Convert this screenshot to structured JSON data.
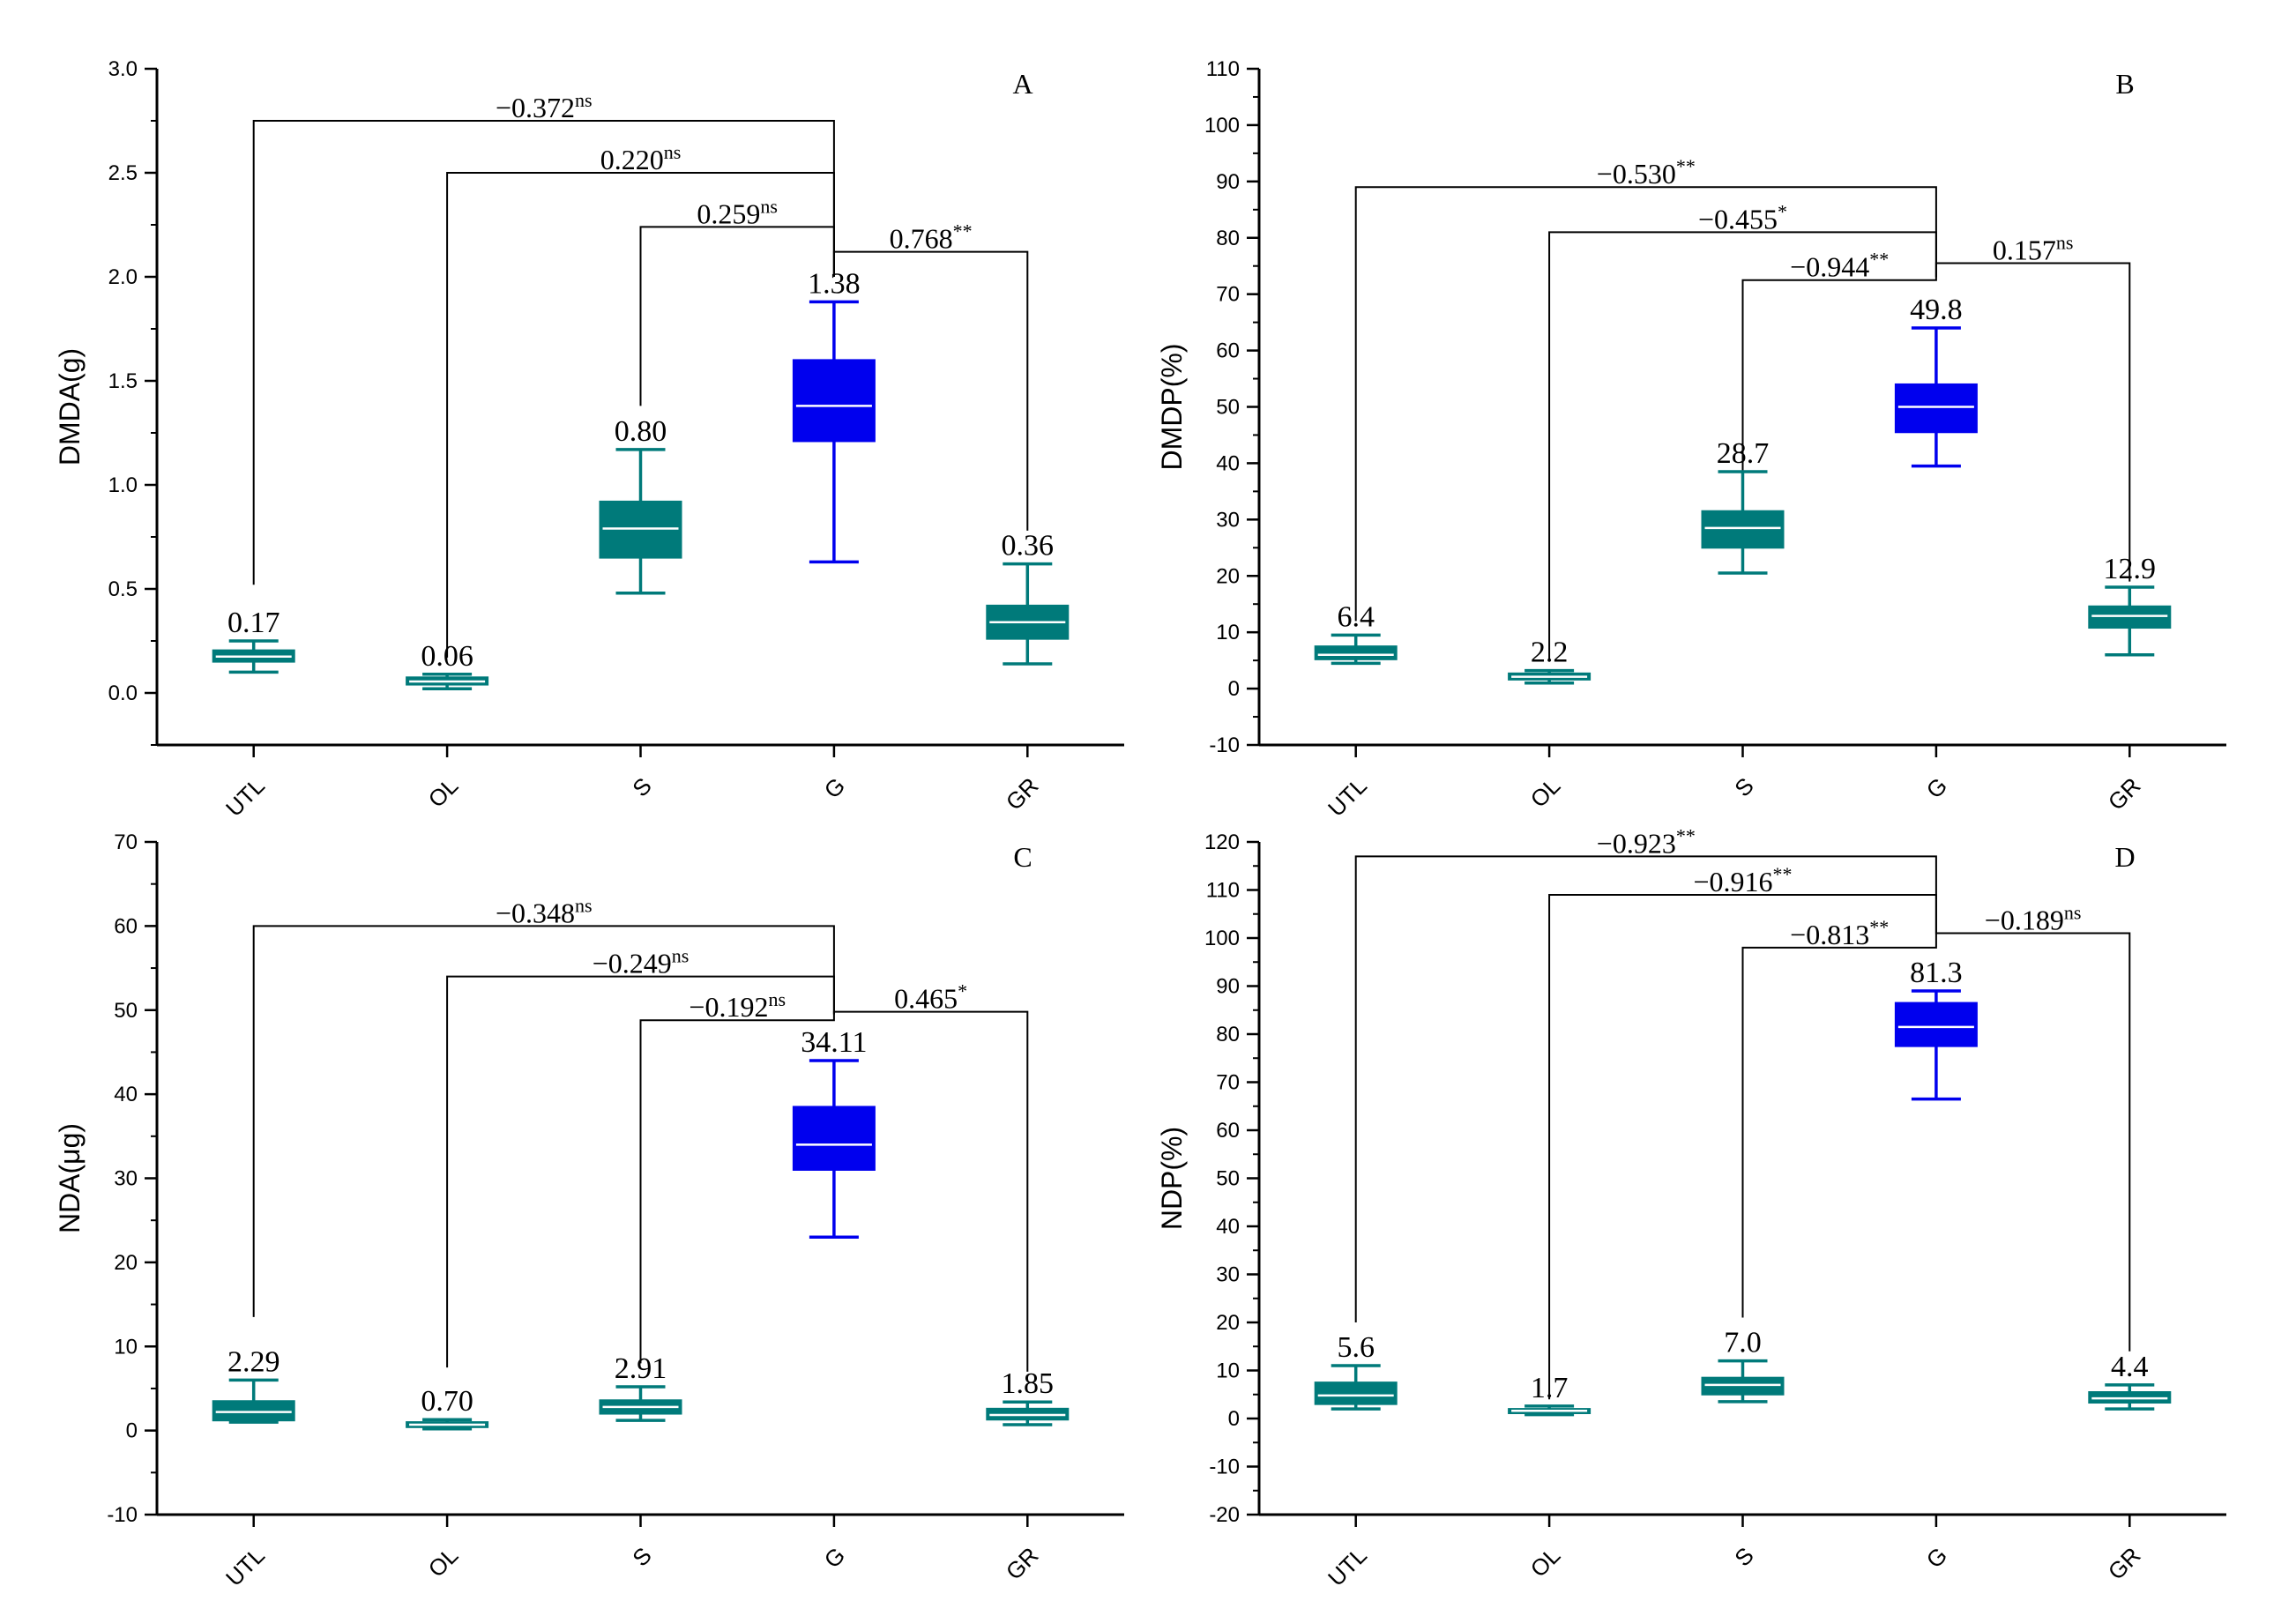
{
  "colors": {
    "teal": "#007a7a",
    "blue": "#0000ee",
    "axis": "#000000",
    "median": "#ffffff"
  },
  "chart_data": [
    {
      "type": "box",
      "panel": "A",
      "ylabel": "DMDA(g)",
      "ylim": [
        -0.25,
        3.0
      ],
      "yticks": [
        0.0,
        0.5,
        1.0,
        1.5,
        2.0,
        2.5,
        3.0
      ],
      "ytick_labels": [
        "0.0",
        "0.5",
        "1.0",
        "1.5",
        "2.0",
        "2.5",
        "3.0"
      ],
      "minor_step": 0.25,
      "categories": [
        "UTL",
        "OL",
        "S",
        "G",
        "GR"
      ],
      "boxes": [
        {
          "cat": "UTL",
          "whislo": 0.1,
          "q1": 0.15,
          "med": 0.175,
          "q3": 0.205,
          "whishi": 0.25,
          "label": "0.17",
          "color": "teal"
        },
        {
          "cat": "OL",
          "whislo": 0.02,
          "q1": 0.04,
          "med": 0.055,
          "q3": 0.075,
          "whishi": 0.09,
          "label": "0.06",
          "color": "teal"
        },
        {
          "cat": "S",
          "whislo": 0.48,
          "q1": 0.65,
          "med": 0.79,
          "q3": 0.92,
          "whishi": 1.17,
          "label": "0.80",
          "color": "teal"
        },
        {
          "cat": "G",
          "whislo": 0.63,
          "q1": 1.21,
          "med": 1.38,
          "q3": 1.6,
          "whishi": 1.88,
          "label": "1.38",
          "color": "blue"
        },
        {
          "cat": "GR",
          "whislo": 0.14,
          "q1": 0.26,
          "med": 0.34,
          "q3": 0.42,
          "whishi": 0.62,
          "label": "0.36",
          "color": "teal"
        }
      ],
      "brackets": [
        {
          "from": "UTL",
          "to": "G",
          "y": 2.75,
          "from_end": 0.52,
          "to_end": 2.0,
          "value": "−0.372",
          "sig": "ns"
        },
        {
          "from": "OL",
          "to": "G",
          "y": 2.5,
          "from_end": 0.17,
          "to_end": 2.0,
          "value": "0.220",
          "sig": "ns"
        },
        {
          "from": "S",
          "to": "G",
          "y": 2.24,
          "from_end": 1.38,
          "to_end": 2.0,
          "value": "0.259",
          "sig": "ns"
        },
        {
          "from": "G",
          "to": "GR",
          "y": 2.12,
          "from_end": 2.0,
          "to_end": 0.78,
          "value": "0.768",
          "sig": "**"
        }
      ]
    },
    {
      "type": "box",
      "panel": "B",
      "ylabel": "DMDP(%)",
      "ylim": [
        -10,
        110
      ],
      "yticks": [
        -10,
        0,
        10,
        20,
        30,
        40,
        50,
        60,
        70,
        80,
        90,
        100,
        110
      ],
      "ytick_labels": [
        "-10",
        "0",
        "10",
        "20",
        "30",
        "40",
        "50",
        "60",
        "70",
        "80",
        "90",
        "100",
        "110"
      ],
      "minor_step": 5,
      "categories": [
        "UTL",
        "OL",
        "S",
        "G",
        "GR"
      ],
      "boxes": [
        {
          "cat": "UTL",
          "whislo": 4.5,
          "q1": 5.2,
          "med": 6.0,
          "q3": 7.5,
          "whishi": 9.5,
          "label": "6.4",
          "color": "teal"
        },
        {
          "cat": "OL",
          "whislo": 1.0,
          "q1": 1.6,
          "med": 2.1,
          "q3": 2.7,
          "whishi": 3.2,
          "label": "2.2",
          "color": "teal"
        },
        {
          "cat": "S",
          "whislo": 20.5,
          "q1": 25.0,
          "med": 28.5,
          "q3": 31.5,
          "whishi": 38.5,
          "label": "28.7",
          "color": "teal"
        },
        {
          "cat": "G",
          "whislo": 39.5,
          "q1": 45.5,
          "med": 50.0,
          "q3": 54.0,
          "whishi": 64.0,
          "label": "49.8",
          "color": "blue"
        },
        {
          "cat": "GR",
          "whislo": 6.0,
          "q1": 10.8,
          "med": 12.9,
          "q3": 14.6,
          "whishi": 18.0,
          "label": "12.9",
          "color": "teal"
        }
      ],
      "brackets": [
        {
          "from": "UTL",
          "to": "G",
          "y": 89,
          "from_end": 12,
          "to_end": 73,
          "value": "−0.530",
          "sig": "**"
        },
        {
          "from": "OL",
          "to": "G",
          "y": 81,
          "from_end": 5,
          "to_end": 73,
          "value": "−0.455",
          "sig": "*"
        },
        {
          "from": "S",
          "to": "G",
          "y": 72.5,
          "from_end": 33,
          "to_end": 73,
          "value": "−0.944",
          "sig": "**"
        },
        {
          "from": "G",
          "to": "GR",
          "y": 75.5,
          "from_end": 73,
          "to_end": 19,
          "value": "0.157",
          "sig": "ns"
        }
      ]
    },
    {
      "type": "box",
      "panel": "C",
      "ylabel": "NDA(μg)",
      "ylim": [
        -10,
        70
      ],
      "yticks": [
        -10,
        0,
        10,
        20,
        30,
        40,
        50,
        60,
        70
      ],
      "ytick_labels": [
        "-10",
        "0",
        "10",
        "20",
        "30",
        "40",
        "50",
        "60",
        "70"
      ],
      "minor_step": 5,
      "categories": [
        "UTL",
        "OL",
        "S",
        "G",
        "GR"
      ],
      "boxes": [
        {
          "cat": "UTL",
          "whislo": 1.0,
          "q1": 1.2,
          "med": 2.2,
          "q3": 3.5,
          "whishi": 6.0,
          "label": "2.29",
          "color": "teal"
        },
        {
          "cat": "OL",
          "whislo": 0.2,
          "q1": 0.4,
          "med": 0.7,
          "q3": 1.0,
          "whishi": 1.3,
          "label": "0.70",
          "color": "teal"
        },
        {
          "cat": "S",
          "whislo": 1.2,
          "q1": 2.0,
          "med": 2.8,
          "q3": 3.6,
          "whishi": 5.2,
          "label": "2.91",
          "color": "teal"
        },
        {
          "cat": "G",
          "whislo": 23.0,
          "q1": 31.0,
          "med": 34.0,
          "q3": 38.5,
          "whishi": 44.0,
          "label": "34.11",
          "color": "blue"
        },
        {
          "cat": "GR",
          "whislo": 0.7,
          "q1": 1.3,
          "med": 1.85,
          "q3": 2.6,
          "whishi": 3.4,
          "label": "1.85",
          "color": "teal"
        }
      ],
      "brackets": [
        {
          "from": "UTL",
          "to": "G",
          "y": 60,
          "from_end": 13.5,
          "to_end": 49.5,
          "value": "−0.348",
          "sig": "ns"
        },
        {
          "from": "OL",
          "to": "G",
          "y": 54,
          "from_end": 7.5,
          "to_end": 49.5,
          "value": "−0.249",
          "sig": "ns"
        },
        {
          "from": "S",
          "to": "G",
          "y": 48.8,
          "from_end": 8.0,
          "to_end": 49.5,
          "value": "−0.192",
          "sig": "ns"
        },
        {
          "from": "G",
          "to": "GR",
          "y": 49.8,
          "from_end": 49.5,
          "to_end": 7.0,
          "value": "0.465",
          "sig": "*"
        }
      ]
    },
    {
      "type": "box",
      "panel": "D",
      "ylabel": "NDP(%)",
      "ylim": [
        -20,
        120
      ],
      "yticks": [
        -20,
        -10,
        0,
        10,
        20,
        30,
        40,
        50,
        60,
        70,
        80,
        90,
        100,
        110,
        120
      ],
      "ytick_labels": [
        "-20",
        "-10",
        "0",
        "10",
        "20",
        "30",
        "40",
        "50",
        "60",
        "70",
        "80",
        "90",
        "100",
        "110",
        "120"
      ],
      "minor_step": 5,
      "categories": [
        "UTL",
        "OL",
        "S",
        "G",
        "GR"
      ],
      "boxes": [
        {
          "cat": "UTL",
          "whislo": 2.0,
          "q1": 3.0,
          "med": 4.8,
          "q3": 7.5,
          "whishi": 11.0,
          "label": "5.6",
          "color": "teal"
        },
        {
          "cat": "OL",
          "whislo": 0.8,
          "q1": 1.1,
          "med": 1.6,
          "q3": 2.0,
          "whishi": 2.6,
          "label": "1.7",
          "color": "teal"
        },
        {
          "cat": "S",
          "whislo": 3.5,
          "q1": 5.0,
          "med": 7.0,
          "q3": 8.5,
          "whishi": 12.0,
          "label": "7.0",
          "color": "teal"
        },
        {
          "cat": "G",
          "whislo": 66.5,
          "q1": 77.5,
          "med": 81.5,
          "q3": 86.5,
          "whishi": 89.0,
          "label": "81.3",
          "color": "blue"
        },
        {
          "cat": "GR",
          "whislo": 2.0,
          "q1": 3.3,
          "med": 4.2,
          "q3": 5.5,
          "whishi": 7.0,
          "label": "4.4",
          "color": "teal"
        }
      ],
      "brackets": [
        {
          "from": "UTL",
          "to": "G",
          "y": 117,
          "from_end": 20,
          "to_end": 108,
          "value": "−0.923",
          "sig": "**"
        },
        {
          "from": "OL",
          "to": "G",
          "y": 109,
          "from_end": 4,
          "to_end": 108,
          "value": "−0.916",
          "sig": "**"
        },
        {
          "from": "S",
          "to": "G",
          "y": 98,
          "from_end": 21,
          "to_end": 108,
          "value": "−0.813",
          "sig": "**"
        },
        {
          "from": "G",
          "to": "GR",
          "y": 101,
          "from_end": 108,
          "to_end": 14,
          "value": "−0.189",
          "sig": "ns"
        }
      ]
    }
  ]
}
